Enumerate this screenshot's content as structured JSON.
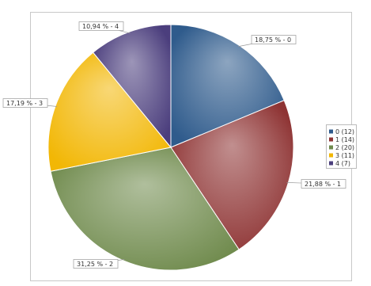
{
  "chart_data": {
    "type": "pie",
    "categories": [
      "0",
      "1",
      "2",
      "3",
      "4"
    ],
    "values": [
      18.75,
      21.88,
      31.25,
      17.19,
      10.94
    ],
    "value_labels": [
      "18,75 % - 0",
      "21,88 % - 1",
      "31,25 % - 2",
      "17,19 % - 3",
      "10,94 % - 4"
    ],
    "legend_labels": [
      "0 (12)",
      "1 (14)",
      "2 (20)",
      "3 (11)",
      "4 (7)"
    ],
    "colors": [
      "#2f5b8c",
      "#8e3333",
      "#6f8a4c",
      "#f2b705",
      "#4b3e7d"
    ],
    "legend": "right"
  }
}
